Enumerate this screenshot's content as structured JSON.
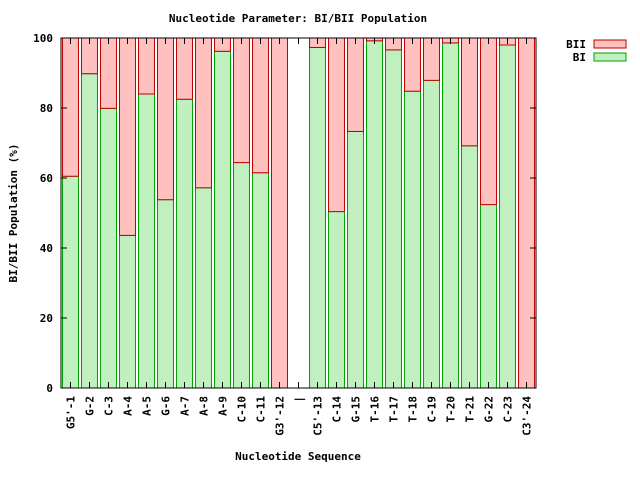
{
  "chart_data": {
    "type": "bar",
    "stacked": true,
    "title": "Nucleotide Parameter: BI/BII Population",
    "xlabel": "Nucleotide Sequence",
    "ylabel": "BI/BII Population (%)",
    "ylim": [
      0,
      100
    ],
    "yticks": [
      0,
      20,
      40,
      60,
      80,
      100
    ],
    "grid": false,
    "legend_position": "top-right",
    "categories": [
      "G5'-1",
      "G-2",
      "C-3",
      "A-4",
      "A-5",
      "G-6",
      "A-7",
      "A-8",
      "A-9",
      "C-10",
      "C-11",
      "G3'-12",
      "|",
      "C5'-13",
      "C-14",
      "G-15",
      "T-16",
      "T-17",
      "T-18",
      "C-19",
      "T-20",
      "T-21",
      "G-22",
      "C-23",
      "C3'-24"
    ],
    "series": [
      {
        "name": "BI",
        "color": "#c0f0c0",
        "stroke": "#00a000",
        "values": [
          60.5,
          89.8,
          79.9,
          43.6,
          84.0,
          53.8,
          82.5,
          57.2,
          96.2,
          64.4,
          61.5,
          0,
          null,
          97.3,
          50.4,
          73.3,
          99.2,
          96.6,
          84.8,
          87.9,
          98.6,
          69.2,
          52.4,
          98.0,
          0
        ]
      },
      {
        "name": "BII",
        "color": "#ffc0c0",
        "stroke": "#c00000",
        "values": [
          39.5,
          10.2,
          20.1,
          56.4,
          16.0,
          46.2,
          17.5,
          42.8,
          3.8,
          35.6,
          38.5,
          100,
          null,
          2.7,
          49.6,
          26.7,
          0.8,
          3.4,
          15.2,
          12.1,
          1.4,
          30.8,
          47.6,
          2.0,
          100
        ]
      }
    ],
    "legend_order": [
      "BII",
      "BI"
    ]
  }
}
